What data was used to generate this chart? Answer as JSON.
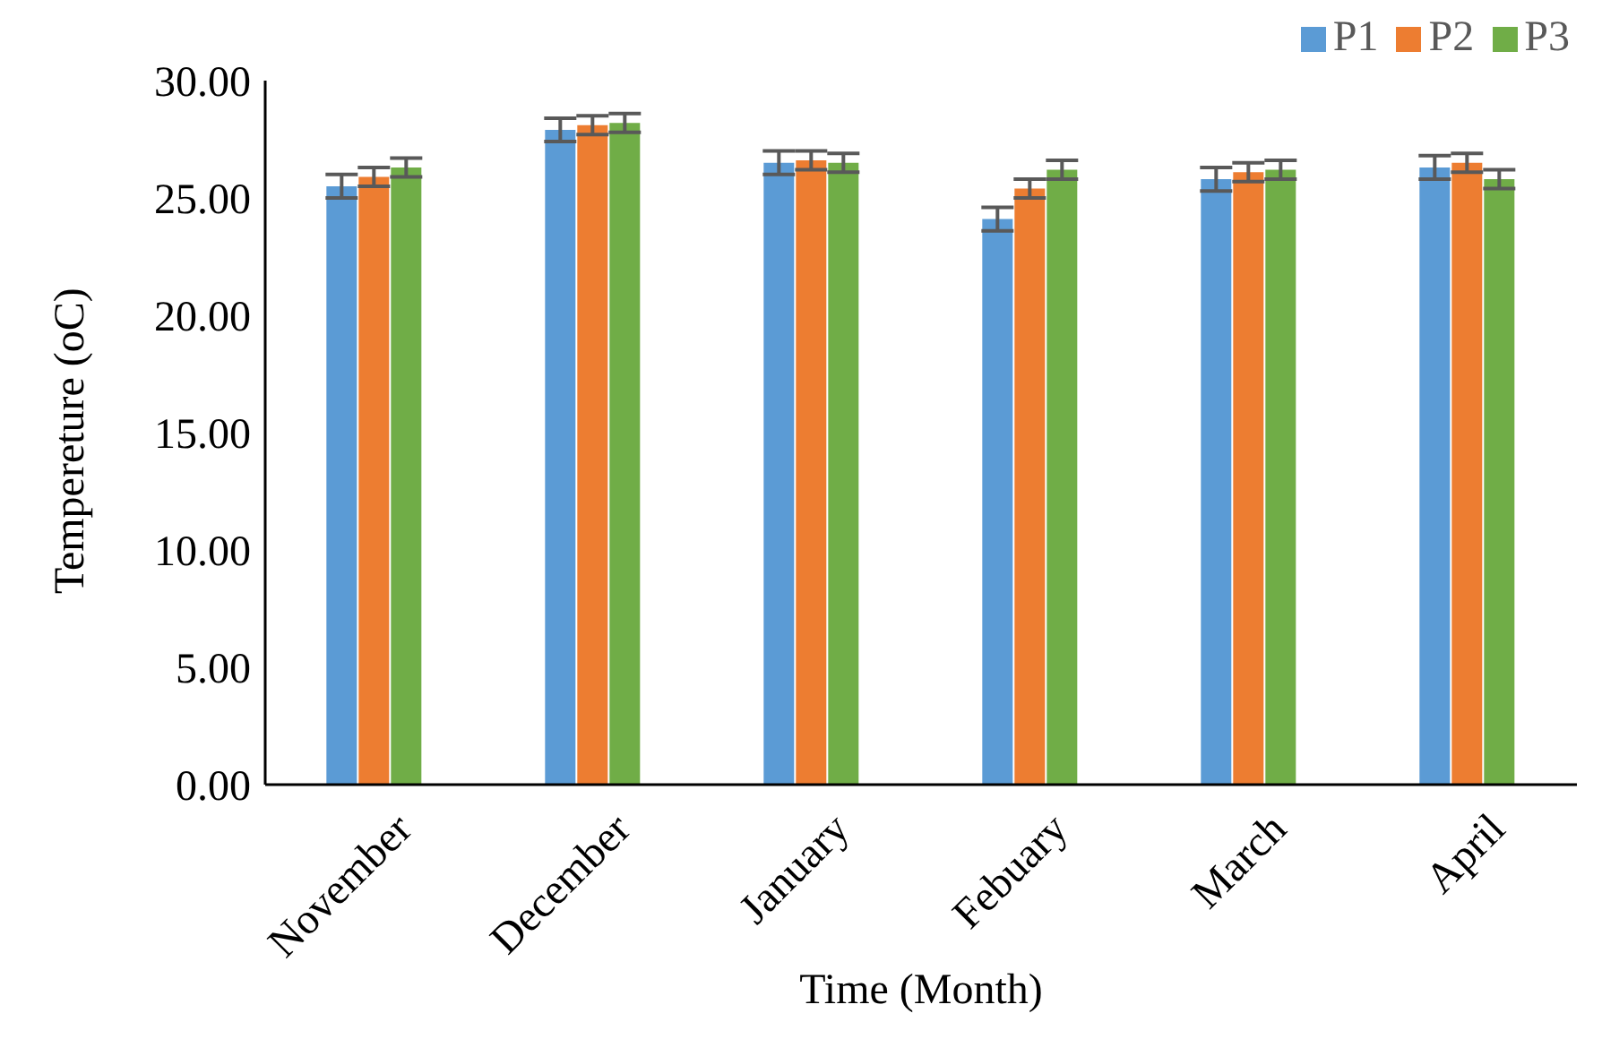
{
  "chart_data": {
    "type": "bar",
    "xlabel": "Time (Month)",
    "ylabel": "Tempereture (oC)",
    "categories": [
      "November",
      "December",
      "January",
      "Febuary",
      "March",
      "April"
    ],
    "series": [
      {
        "name": "P1",
        "color": "#5b9bd5",
        "values": [
          25.5,
          27.9,
          26.5,
          24.1,
          25.8,
          26.3
        ],
        "errors": [
          0.5,
          0.5,
          0.5,
          0.5,
          0.5,
          0.5
        ]
      },
      {
        "name": "P2",
        "color": "#ed7d31",
        "values": [
          25.9,
          28.1,
          26.6,
          25.4,
          26.1,
          26.5
        ],
        "errors": [
          0.4,
          0.4,
          0.4,
          0.4,
          0.4,
          0.4
        ]
      },
      {
        "name": "P3",
        "color": "#70ad47",
        "values": [
          26.3,
          28.2,
          26.5,
          26.2,
          26.2,
          25.8
        ],
        "errors": [
          0.4,
          0.4,
          0.4,
          0.4,
          0.4,
          0.4
        ]
      }
    ],
    "ylim": [
      0,
      30
    ],
    "yticks": [
      {
        "value": 0,
        "label": "0.00"
      },
      {
        "value": 5,
        "label": "5.00"
      },
      {
        "value": 10,
        "label": "10.00"
      },
      {
        "value": 15,
        "label": "15.00"
      },
      {
        "value": 20,
        "label": "20.00"
      },
      {
        "value": 25,
        "label": "25.00"
      },
      {
        "value": 30,
        "label": "30.00"
      }
    ],
    "grid": false,
    "legend": "top right"
  }
}
